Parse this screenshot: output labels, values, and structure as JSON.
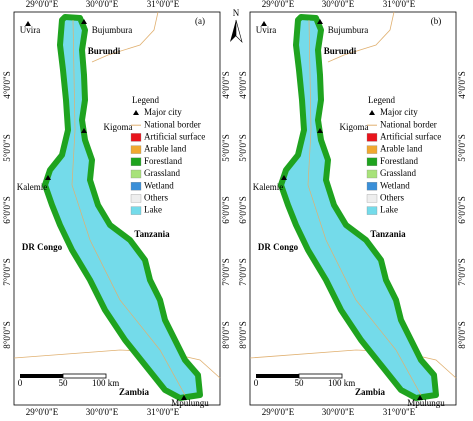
{
  "panels": [
    {
      "label": "(a)"
    },
    {
      "label": "(b)"
    }
  ],
  "north": "N",
  "longitude_labels": [
    "29°0'0\"E",
    "30°0'0\"E",
    "31°0'0\"E"
  ],
  "latitude_labels": [
    "4°0'0\"S",
    "5°0'0\"S",
    "6°0'0\"S",
    "7°0'0\"S",
    "8°0'0\"S"
  ],
  "cities": [
    "Uvira",
    "Bujumbura",
    "Kigoma",
    "Kalemie",
    "Mpulungu"
  ],
  "countries": [
    "Burundi",
    "Tanzania",
    "DR Congo",
    "Zambia"
  ],
  "legend": {
    "title": "Legend",
    "items": [
      {
        "name": "Major city",
        "color": "#000000"
      },
      {
        "name": "National border",
        "color": "#e0b070"
      },
      {
        "name": "Artificial surface",
        "color": "#e8141c"
      },
      {
        "name": "Arable land",
        "color": "#f0a830"
      },
      {
        "name": "Forestland",
        "color": "#1fa31f"
      },
      {
        "name": "Grassland",
        "color": "#a8e27a"
      },
      {
        "name": "Wetland",
        "color": "#3a8fd8"
      },
      {
        "name": "Others",
        "color": "#eeeeee"
      },
      {
        "name": "Lake",
        "color": "#74dbea"
      }
    ]
  },
  "scale_bar": [
    "0",
    "50",
    "100 km"
  ]
}
